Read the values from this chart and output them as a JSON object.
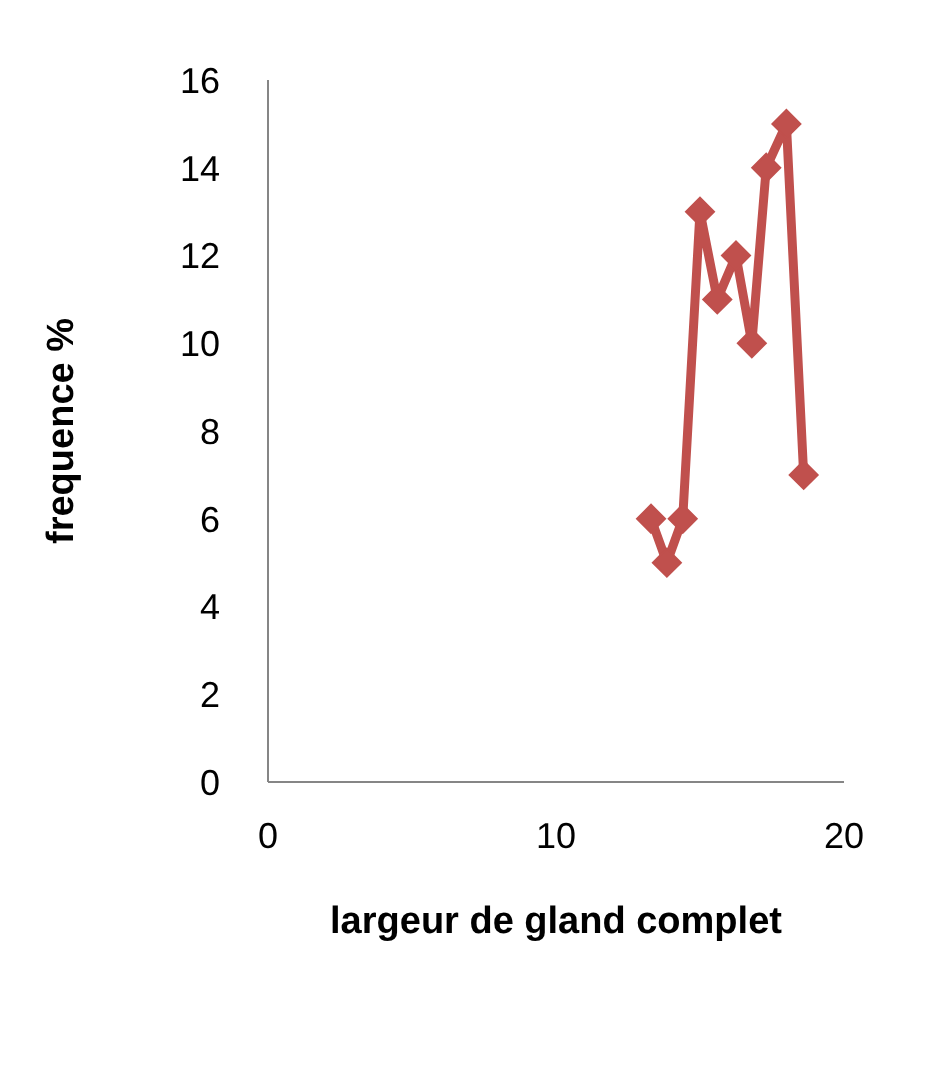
{
  "chart_data": {
    "type": "line",
    "xlabel": "largeur de gland complet",
    "ylabel": "frequence %",
    "x": [
      13.3,
      13.85,
      14.4,
      15.0,
      15.6,
      16.25,
      16.8,
      17.3,
      18.0,
      18.6
    ],
    "series": [
      {
        "color": "#c0504d",
        "values": [
          6,
          5,
          6,
          13,
          11,
          12,
          10,
          14,
          15,
          7
        ]
      }
    ],
    "xlim": [
      0,
      20
    ],
    "xticks": [
      0,
      10,
      20
    ],
    "ylim": [
      0,
      16
    ],
    "yticks": [
      0,
      2,
      4,
      6,
      8,
      10,
      12,
      14,
      16
    ],
    "marker": "diamond"
  }
}
